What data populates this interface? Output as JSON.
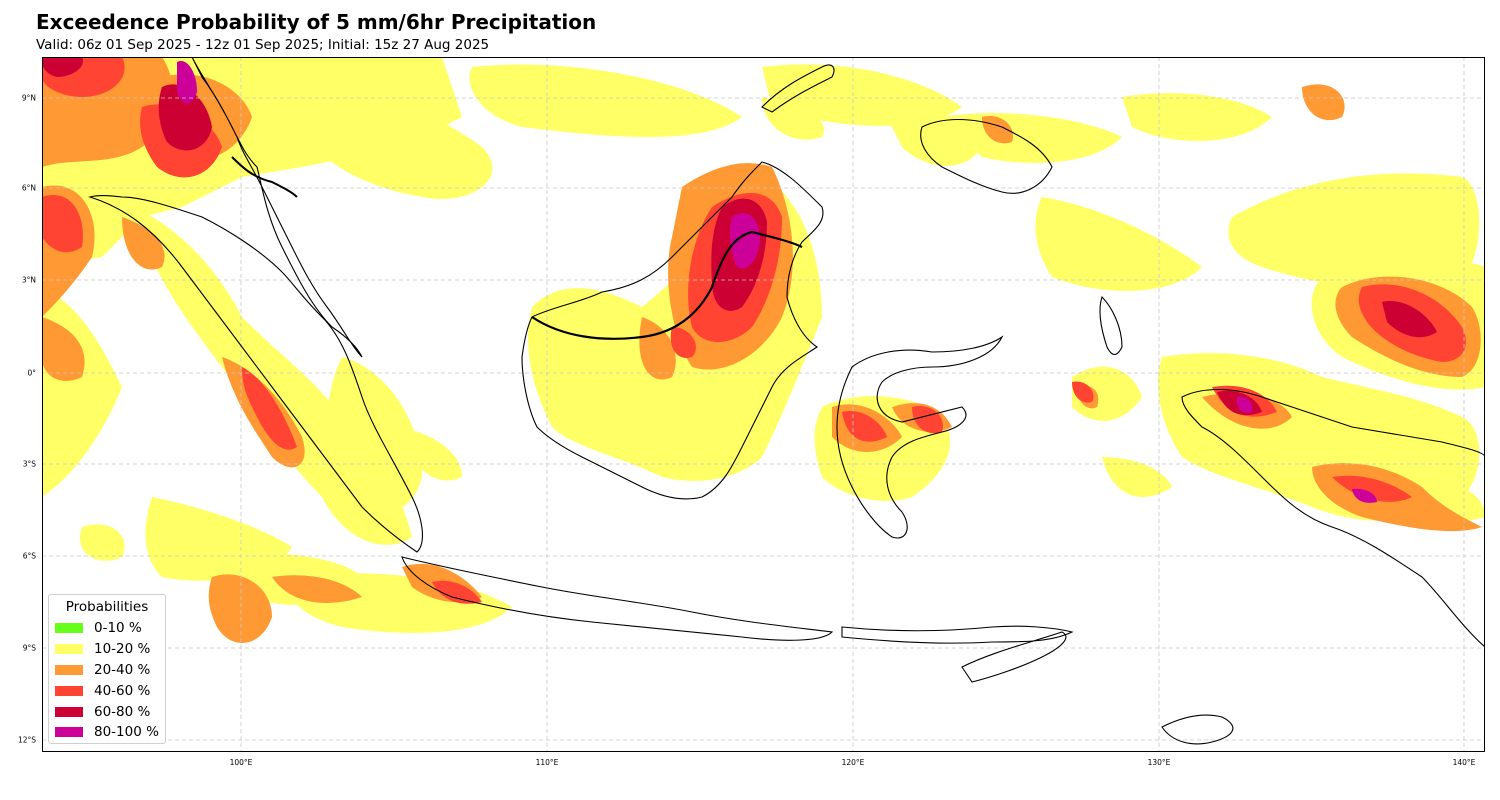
{
  "header": {
    "title": "Exceedence Probability of 5 mm/6hr Precipitation",
    "subtitle": "Valid: 06z 01 Sep 2025 - 12z 01 Sep 2025; Initial: 15z 27 Aug 2025"
  },
  "map": {
    "region": "Maritime Continent / Indonesia",
    "extent": {
      "lon": [
        93.5,
        140.7
      ],
      "lat": [
        -12.5,
        10.3
      ]
    },
    "lat_ticks": [
      "9°N",
      "6°N",
      "3°N",
      "0°",
      "3°S",
      "6°S",
      "9°S",
      "12°S"
    ],
    "lon_ticks": [
      "100°E",
      "110°E",
      "120°E",
      "130°E",
      "140°E"
    ],
    "grid": true,
    "background_color": "#ffffff",
    "coastline_color": "#000000"
  },
  "legend": {
    "title": "Probabilities",
    "placement": "lower-left",
    "items": [
      {
        "label": "0-10 %",
        "color": "#66ff19"
      },
      {
        "label": "10-20 %",
        "color": "#ffff66"
      },
      {
        "label": "20-40 %",
        "color": "#ff9933"
      },
      {
        "label": "40-60 %",
        "color": "#ff4433"
      },
      {
        "label": "60-80 %",
        "color": "#cc0033"
      },
      {
        "label": "80-100 %",
        "color": "#cc0099"
      }
    ]
  }
}
